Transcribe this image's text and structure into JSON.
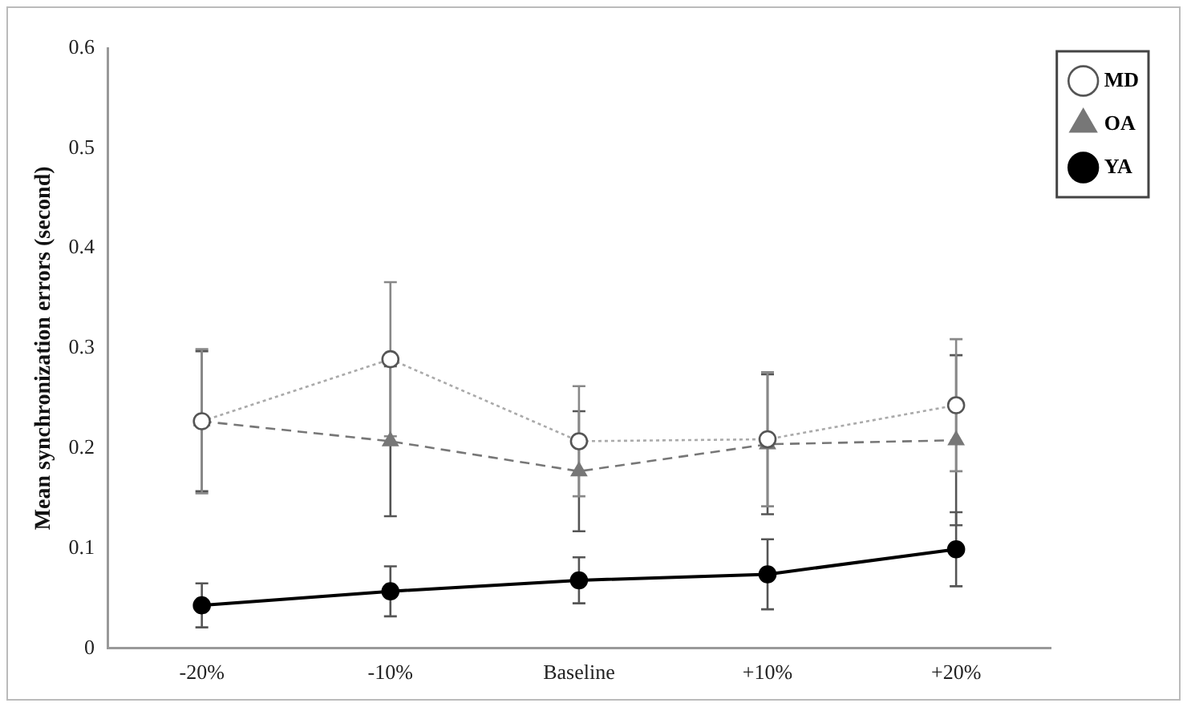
{
  "chart_data": {
    "type": "line",
    "ylabel": "Mean synchronization errors (second)",
    "categories": [
      "-20%",
      "-10%",
      "Baseline",
      "+10%",
      "+20%"
    ],
    "ylim": [
      0,
      0.6
    ],
    "yticks": [
      0,
      0.1,
      0.2,
      0.3,
      0.4,
      0.5,
      0.6
    ],
    "grid": false,
    "legend": "top right",
    "series": [
      {
        "name": "YA",
        "color": "#000000",
        "marker": "circle",
        "line_style": "solid",
        "values": [
          0.043,
          0.057,
          0.068,
          0.074,
          0.099
        ],
        "errors": [
          0.022,
          0.025,
          0.023,
          0.035,
          0.037
        ]
      },
      {
        "name": "OA",
        "color": "#777777",
        "marker": "triangle",
        "line_style": "dashed",
        "values": [
          0.227,
          0.207,
          0.177,
          0.204,
          0.208
        ],
        "errors": [
          0.07,
          0.075,
          0.06,
          0.07,
          0.085
        ]
      },
      {
        "name": "MD",
        "color": "#aaaaaa",
        "marker": "circle",
        "line_style": "dotted",
        "values": [
          0.227,
          0.289,
          0.207,
          0.209,
          0.243
        ],
        "errors": [
          0.072,
          0.077,
          0.055,
          0.067,
          0.066
        ]
      }
    ]
  }
}
